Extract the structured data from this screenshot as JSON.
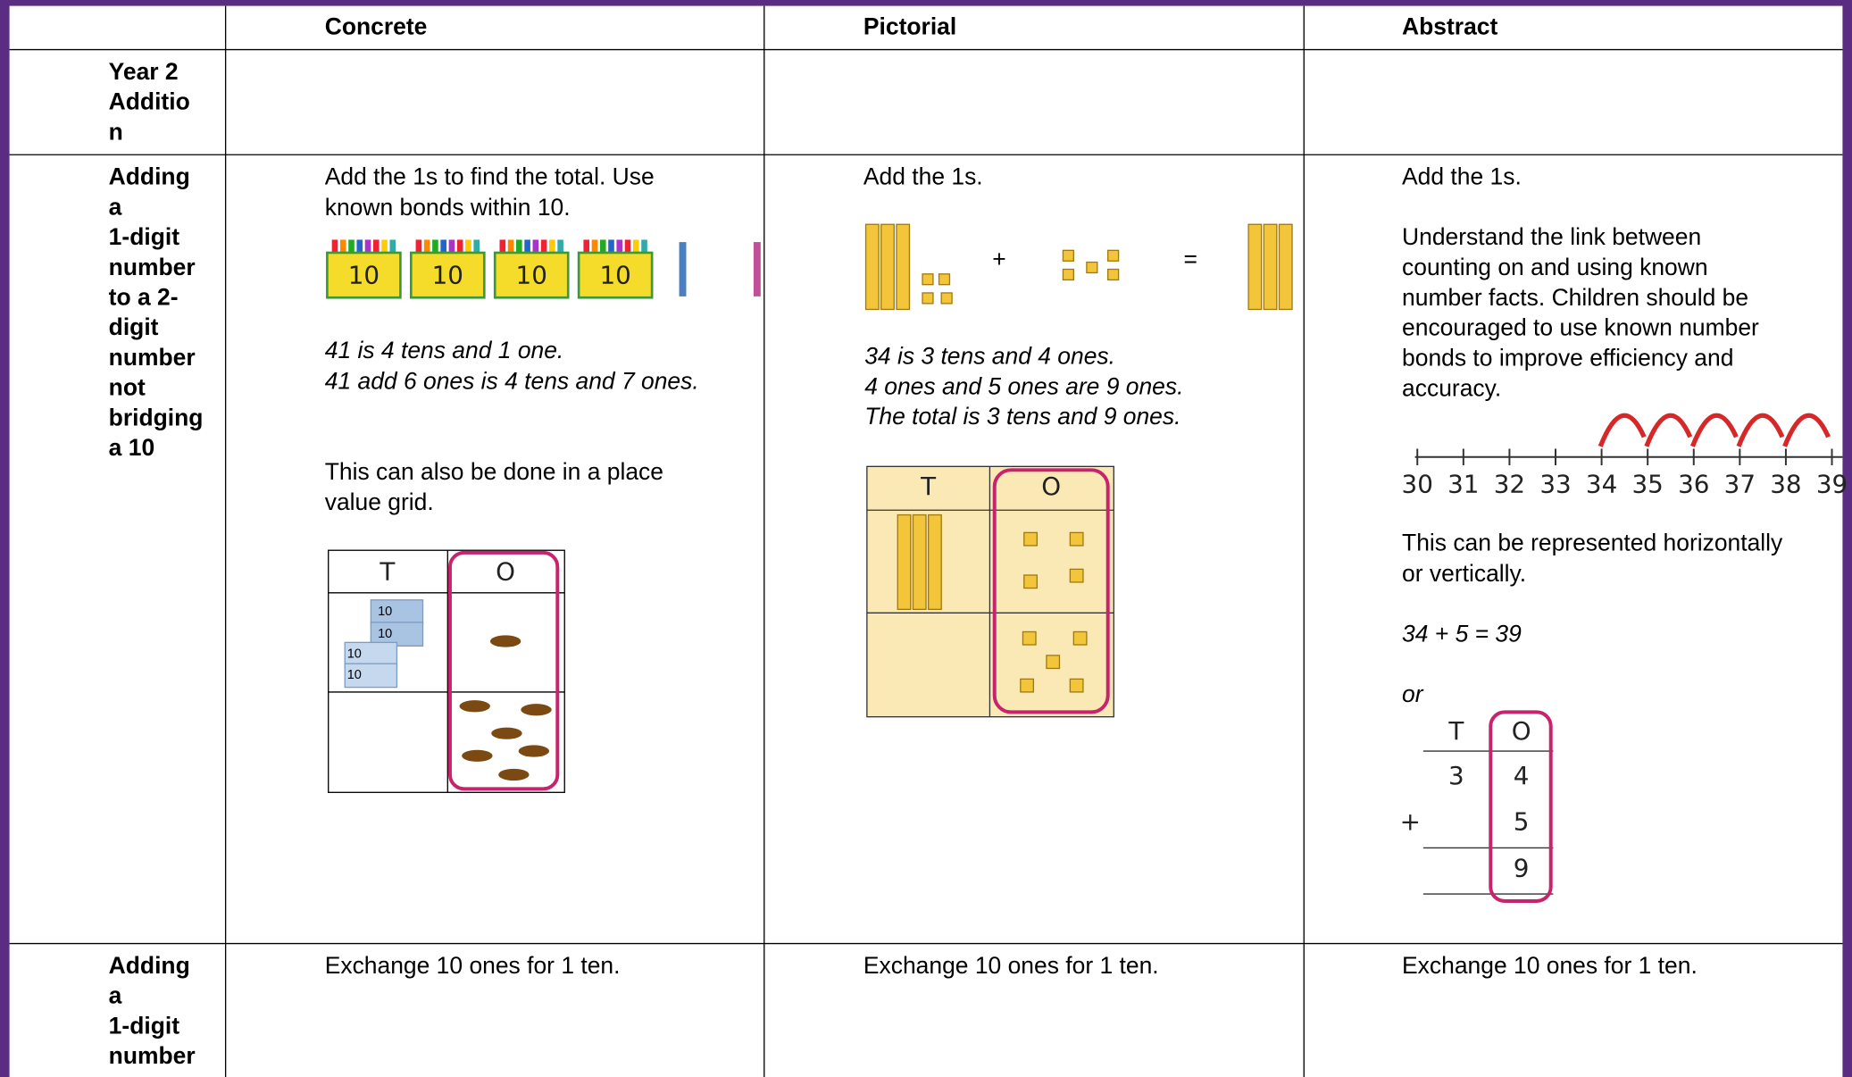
{
  "header": {
    "concrete": "Concrete",
    "pictorial": "Pictorial",
    "abstract": "Abstract"
  },
  "rows": [
    {
      "label": [
        "Year 2",
        "Additio",
        "n"
      ]
    },
    {
      "label": [
        "Adding",
        "a",
        "1-digit",
        "number",
        "to a 2-",
        "digit",
        "number",
        "not",
        "bridging",
        "a 10"
      ],
      "concrete": {
        "intro": [
          "Add the 1s to find the total. Use",
          "known bonds within 10."
        ],
        "crayon_boxes": [
          "10",
          "10",
          "10",
          "10"
        ],
        "facts": [
          "41 is 4 tens and 1 one.",
          "41 add 6 ones is 4 tens and 7 ones."
        ],
        "note": [
          "This can also be done in a place",
          "value grid."
        ],
        "grid": {
          "headers": [
            "T",
            "O"
          ],
          "tens": [
            "10",
            "10",
            "10",
            "10"
          ]
        }
      },
      "pictorial": {
        "intro": "Add the 1s.",
        "equation": {
          "plus": "+",
          "equals": "="
        },
        "facts": [
          "34 is 3 tens and 4 ones.",
          "4 ones and 5 ones are 9 ones.",
          "The total is 3 tens and 9 ones."
        ],
        "grid": {
          "headers": [
            "T",
            "O"
          ]
        }
      },
      "abstract": {
        "intro": "Add the 1s.",
        "paragraph": [
          "Understand the link between",
          "counting on and using known",
          "number facts. Children should be",
          "encouraged to use known number",
          "bonds to improve efficiency and",
          "accuracy."
        ],
        "number_line": [
          "30",
          "31",
          "32",
          "33",
          "34",
          "35",
          "36",
          "37",
          "38",
          "39"
        ],
        "note": [
          "This can be represented horizontally",
          "or vertically."
        ],
        "sum": "34 + 5 = 39",
        "or": "or",
        "column": {
          "headers": [
            "T",
            "O"
          ],
          "top": [
            "3",
            "4"
          ],
          "plus": "+",
          "addend": "5",
          "answer": "9"
        }
      }
    },
    {
      "label": [
        "Adding",
        "a",
        "1-digit",
        "number"
      ],
      "concrete": "Exchange 10 ones for 1 ten.",
      "pictorial": "Exchange 10 ones for 1 ten.",
      "abstract": "Exchange 10 ones for 1 ten."
    }
  ]
}
